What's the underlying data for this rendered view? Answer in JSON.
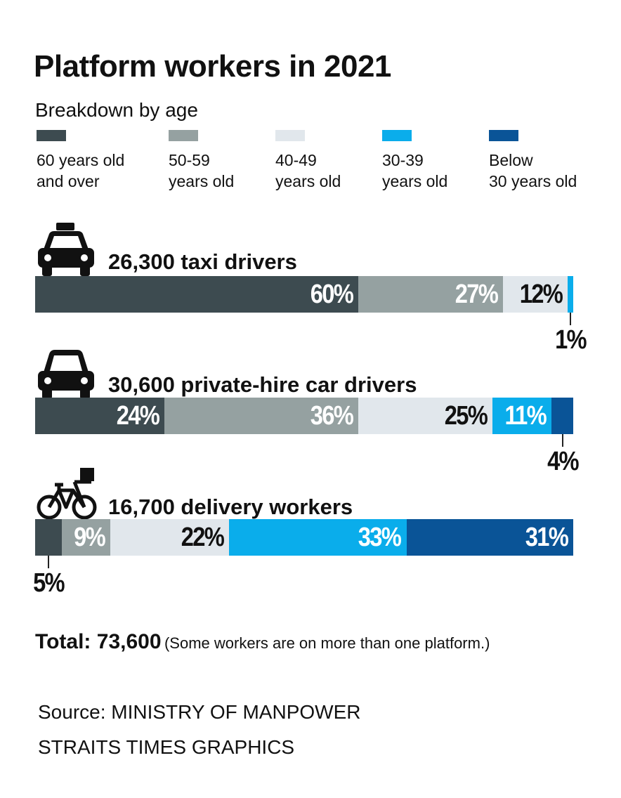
{
  "chart_data": {
    "type": "bar",
    "orientation": "horizontal",
    "stacked": true,
    "title": "Platform workers in 2021",
    "subtitle": "Breakdown by age",
    "legend": [
      {
        "label": "60 years old\nand over",
        "color": "#3d4b50"
      },
      {
        "label": "50-59\nyears old",
        "color": "#95a1a1"
      },
      {
        "label": "40-49\nyears old",
        "color": "#e1e7ec"
      },
      {
        "label": "30-39\nyears old",
        "color": "#0aadeb"
      },
      {
        "label": "Below\n30 years old",
        "color": "#0a5497"
      }
    ],
    "categories": [
      "26,300 taxi drivers",
      "30,600 private-hire car drivers",
      "16,700 delivery workers"
    ],
    "category_icons": [
      "taxi-icon",
      "car-icon",
      "delivery-bicycle-icon"
    ],
    "series": [
      {
        "name": "60 years old and over",
        "values": [
          60,
          24,
          5
        ]
      },
      {
        "name": "50-59 years old",
        "values": [
          27,
          36,
          9
        ]
      },
      {
        "name": "40-49 years old",
        "values": [
          12,
          25,
          22
        ]
      },
      {
        "name": "30-39 years old",
        "values": [
          1,
          11,
          33
        ]
      },
      {
        "name": "Below 30 years old",
        "values": [
          0,
          4,
          31
        ]
      }
    ],
    "unit": "%",
    "xlim": [
      0,
      100
    ]
  },
  "total": {
    "label": "Total: 73,600",
    "note": "(Some workers are on more than one platform.)"
  },
  "source": "Source: MINISTRY OF MANPOWER",
  "credit": "STRAITS TIMES GRAPHICS"
}
